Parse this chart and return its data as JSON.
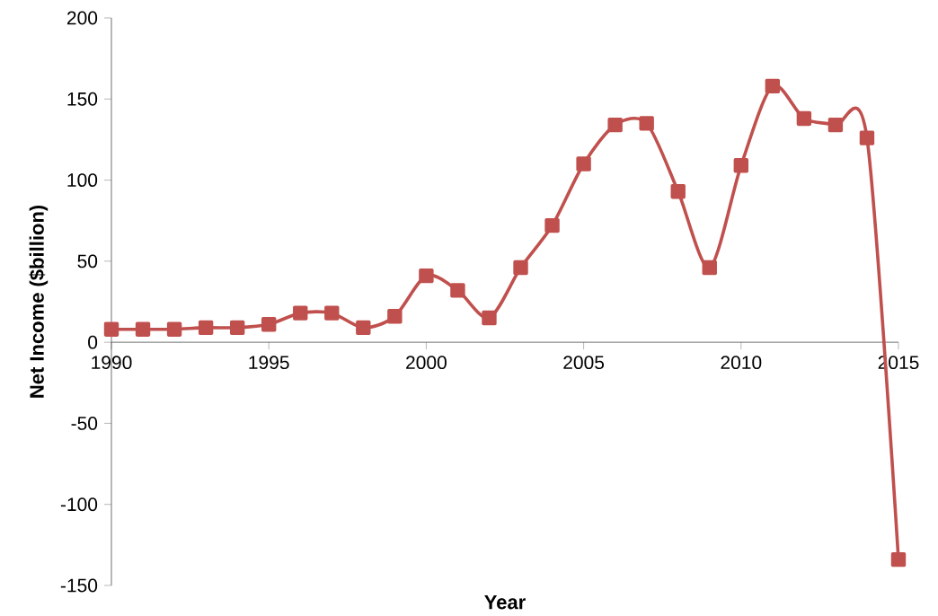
{
  "chart_data": {
    "type": "line",
    "xlabel": "Year",
    "ylabel": "Net Income ($billion)",
    "x": [
      1990,
      1991,
      1992,
      1993,
      1994,
      1995,
      1996,
      1997,
      1998,
      1999,
      2000,
      2001,
      2002,
      2003,
      2004,
      2005,
      2006,
      2007,
      2008,
      2009,
      2010,
      2011,
      2012,
      2013,
      2014,
      2015
    ],
    "series": [
      {
        "color": "#c0504d",
        "values": [
          8,
          8,
          8,
          9,
          9,
          11,
          18,
          18,
          9,
          16,
          41,
          32,
          15,
          46,
          72,
          110,
          134,
          135,
          93,
          46,
          109,
          158,
          138,
          134,
          126,
          -134
        ]
      }
    ],
    "xlim": [
      1990,
      2015
    ],
    "xticks": [
      1990,
      1995,
      2000,
      2005,
      2010,
      2015
    ],
    "ylim": [
      -150,
      200
    ],
    "yticks": [
      -150,
      -100,
      -50,
      0,
      50,
      100,
      150,
      200
    ],
    "grid": false,
    "marker": "square",
    "line_style": "solid"
  }
}
